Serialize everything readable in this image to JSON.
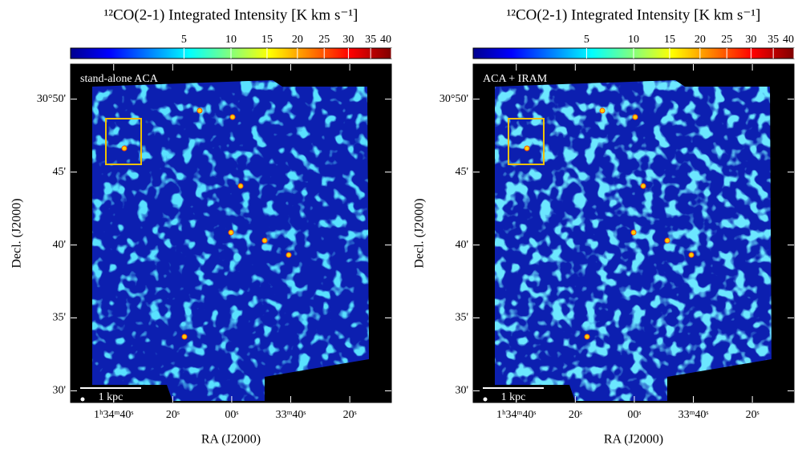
{
  "panels": [
    {
      "title": "¹²CO(2-1) Integrated Intensity  [K km s⁻¹]",
      "label": "stand-alone ACA",
      "xlabel": "RA (J2000)",
      "ylabel": "Decl. (J2000)",
      "scale_bar": "1 kpc"
    },
    {
      "title": "¹²CO(2-1) Integrated Intensity  [K km s⁻¹]",
      "label": "ACA + IRAM",
      "xlabel": "RA (J2000)",
      "ylabel": "Decl. (J2000)",
      "scale_bar": "1 kpc"
    }
  ],
  "colorbar": {
    "scale": "sqrt",
    "clim": [
      0,
      40
    ],
    "ticks": [
      5,
      10,
      15,
      20,
      25,
      30,
      35,
      40
    ]
  },
  "xaxis": {
    "lim": [
      114.6,
      5.9
    ],
    "ticks": [
      {
        "value": 100,
        "label": "1ʰ34ᵐ40ˢ"
      },
      {
        "value": 80,
        "label": "20ˢ"
      },
      {
        "value": 60,
        "label": "00ˢ"
      },
      {
        "value": 40,
        "label": "33ᵐ40ˢ"
      },
      {
        "value": 20,
        "label": "20ˢ"
      }
    ]
  },
  "yaxis": {
    "lim": [
      29.2,
      52.4
    ],
    "ticks": [
      {
        "value": 50,
        "label": "30°50'"
      },
      {
        "value": 45,
        "label": "45'"
      },
      {
        "value": 40,
        "label": "40'"
      },
      {
        "value": 35,
        "label": "35'"
      },
      {
        "value": 30,
        "label": "30'"
      }
    ]
  }
}
